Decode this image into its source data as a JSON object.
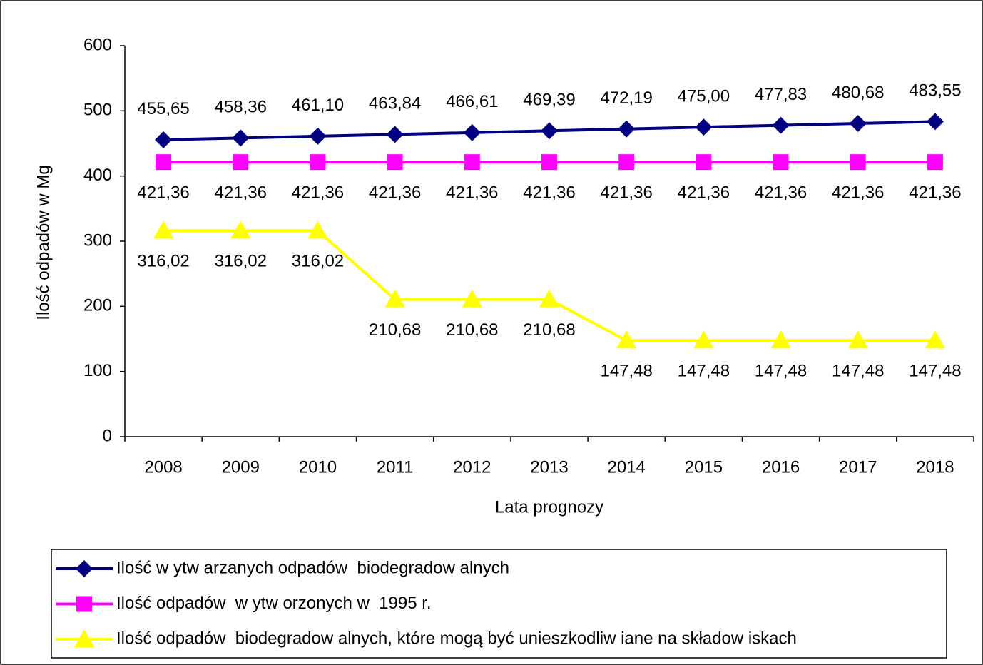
{
  "chart_data": {
    "type": "line",
    "x_label": "Lata prognozy",
    "y_label": "Ilość odpadów w Mg",
    "categories": [
      "2008",
      "2009",
      "2010",
      "2011",
      "2012",
      "2013",
      "2014",
      "2015",
      "2016",
      "2017",
      "2018"
    ],
    "ylim": [
      0,
      600
    ],
    "yticks": [
      0,
      100,
      200,
      300,
      400,
      500,
      600
    ],
    "series": [
      {
        "name": "Ilość w ytw arzanych odpadów  biodegradow alnych",
        "color": "#000080",
        "marker": "diamond",
        "values": [
          455.65,
          458.36,
          461.1,
          463.84,
          466.61,
          469.39,
          472.19,
          475.0,
          477.83,
          480.68,
          483.55
        ],
        "value_labels": [
          "455,65",
          "458,36",
          "461,10",
          "463,84",
          "466,61",
          "469,39",
          "472,19",
          "475,00",
          "477,83",
          "480,68",
          "483,55"
        ]
      },
      {
        "name": "Ilość odpadów  w ytw orzonych w  1995 r.",
        "color": "#ff00ff",
        "marker": "square",
        "values": [
          421.36,
          421.36,
          421.36,
          421.36,
          421.36,
          421.36,
          421.36,
          421.36,
          421.36,
          421.36,
          421.36
        ],
        "value_labels": [
          "421,36",
          "421,36",
          "421,36",
          "421,36",
          "421,36",
          "421,36",
          "421,36",
          "421,36",
          "421,36",
          "421,36",
          "421,36"
        ]
      },
      {
        "name": "Ilość odpadów  biodegradow alnych, które mogą być unieszkodliw iane na składow iskach",
        "color": "#ffff00",
        "marker": "triangle",
        "values": [
          316.02,
          316.02,
          316.02,
          210.68,
          210.68,
          210.68,
          147.48,
          147.48,
          147.48,
          147.48,
          147.48
        ],
        "value_labels": [
          "316,02",
          "316,02",
          "316,02",
          "210,68",
          "210,68",
          "210,68",
          "147,48",
          "147,48",
          "147,48",
          "147,48",
          "147,48"
        ]
      }
    ]
  }
}
